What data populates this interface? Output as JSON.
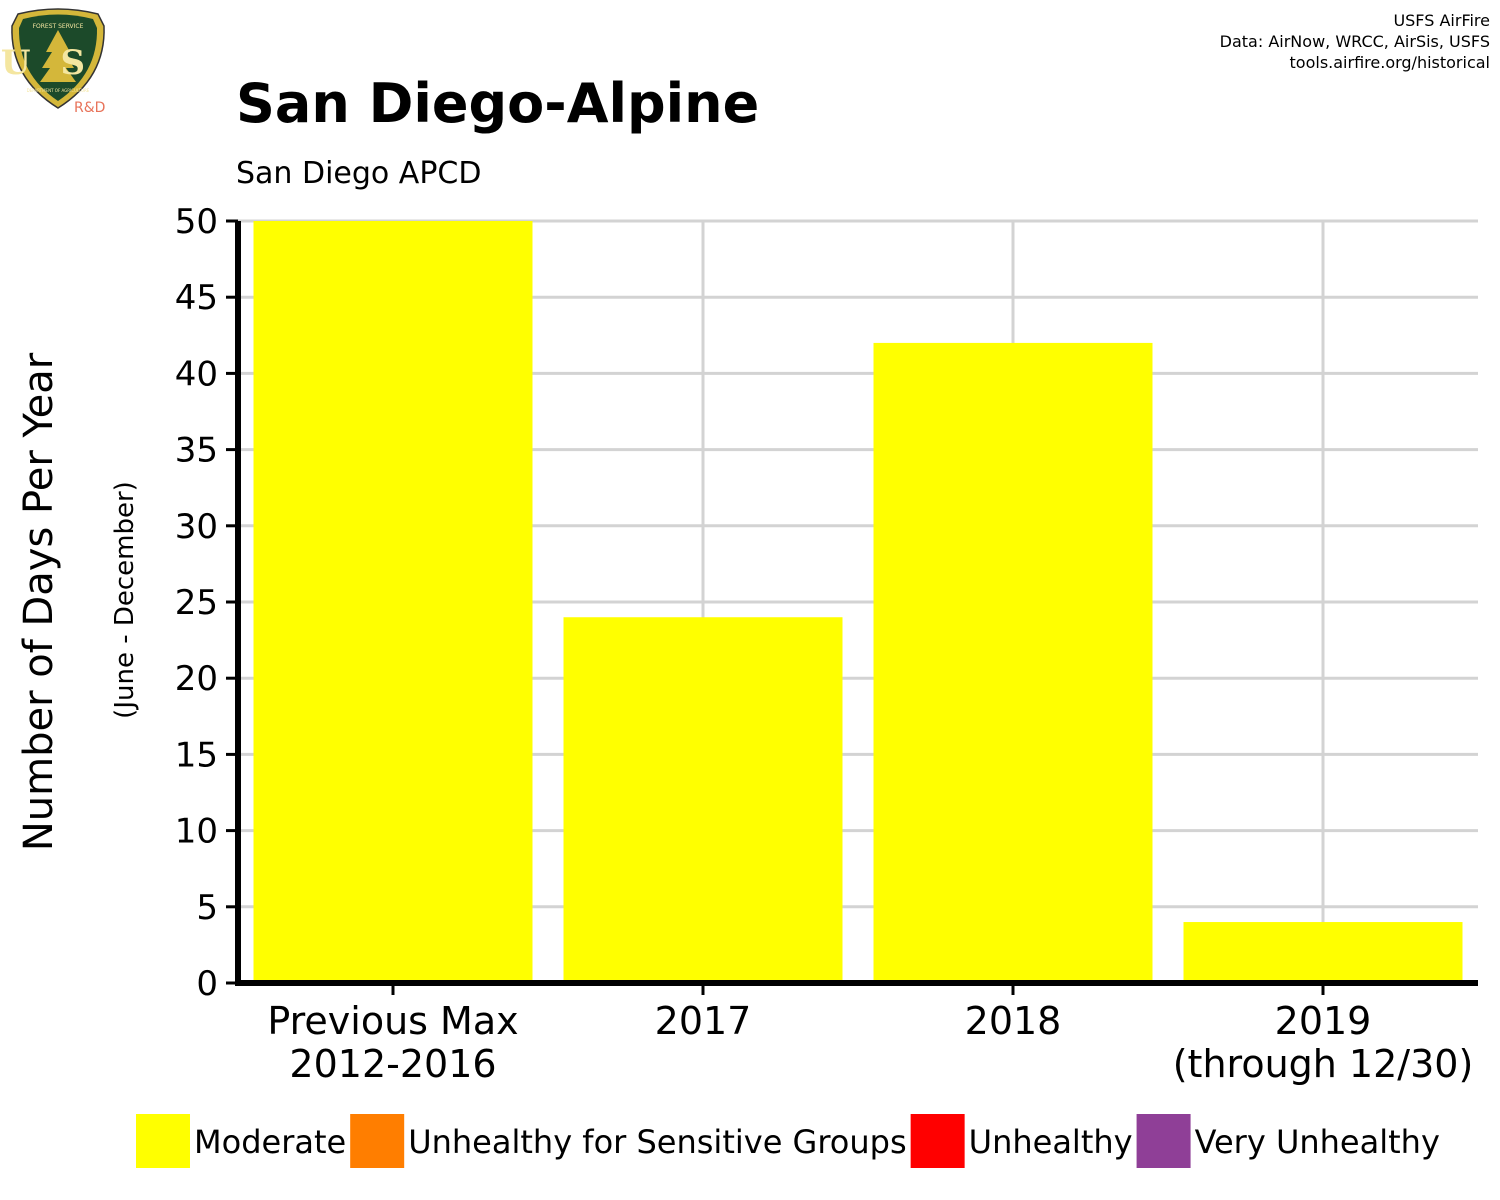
{
  "logo": {
    "top_text": "FOREST SERVICE",
    "letters": "US",
    "bottom_text": "DEPARTMENT OF AGRICULTURE",
    "tag": "R&D"
  },
  "credits": [
    "USFS AirFire",
    "Data: AirNow, WRCC, AirSis, USFS",
    "tools.airfire.org/historical"
  ],
  "chart_data": {
    "type": "bar",
    "title": "San Diego-Alpine",
    "subtitle": "San Diego APCD",
    "ylabel": "Number of Days Per Year",
    "ylabel_sub": "(June - December)",
    "categories": [
      [
        "Previous Max",
        "2012-2016"
      ],
      [
        "2017"
      ],
      [
        "2018"
      ],
      [
        "2019",
        "(through 12/30)"
      ]
    ],
    "series": [
      {
        "name": "Moderate",
        "color": "#ffff00",
        "values": [
          50,
          24,
          42,
          4
        ]
      }
    ],
    "ylim": [
      0,
      50
    ],
    "yticks": [
      0,
      5,
      10,
      15,
      20,
      25,
      30,
      35,
      40,
      45,
      50
    ],
    "grid": true,
    "legend": {
      "position": "bottom",
      "entries": [
        {
          "label": "Moderate",
          "color": "#ffff00"
        },
        {
          "label": "Unhealthy for Sensitive Groups",
          "color": "#ff7e00"
        },
        {
          "label": "Unhealthy",
          "color": "#ff0000"
        },
        {
          "label": "Very Unhealthy",
          "color": "#8f3f97"
        }
      ]
    }
  }
}
